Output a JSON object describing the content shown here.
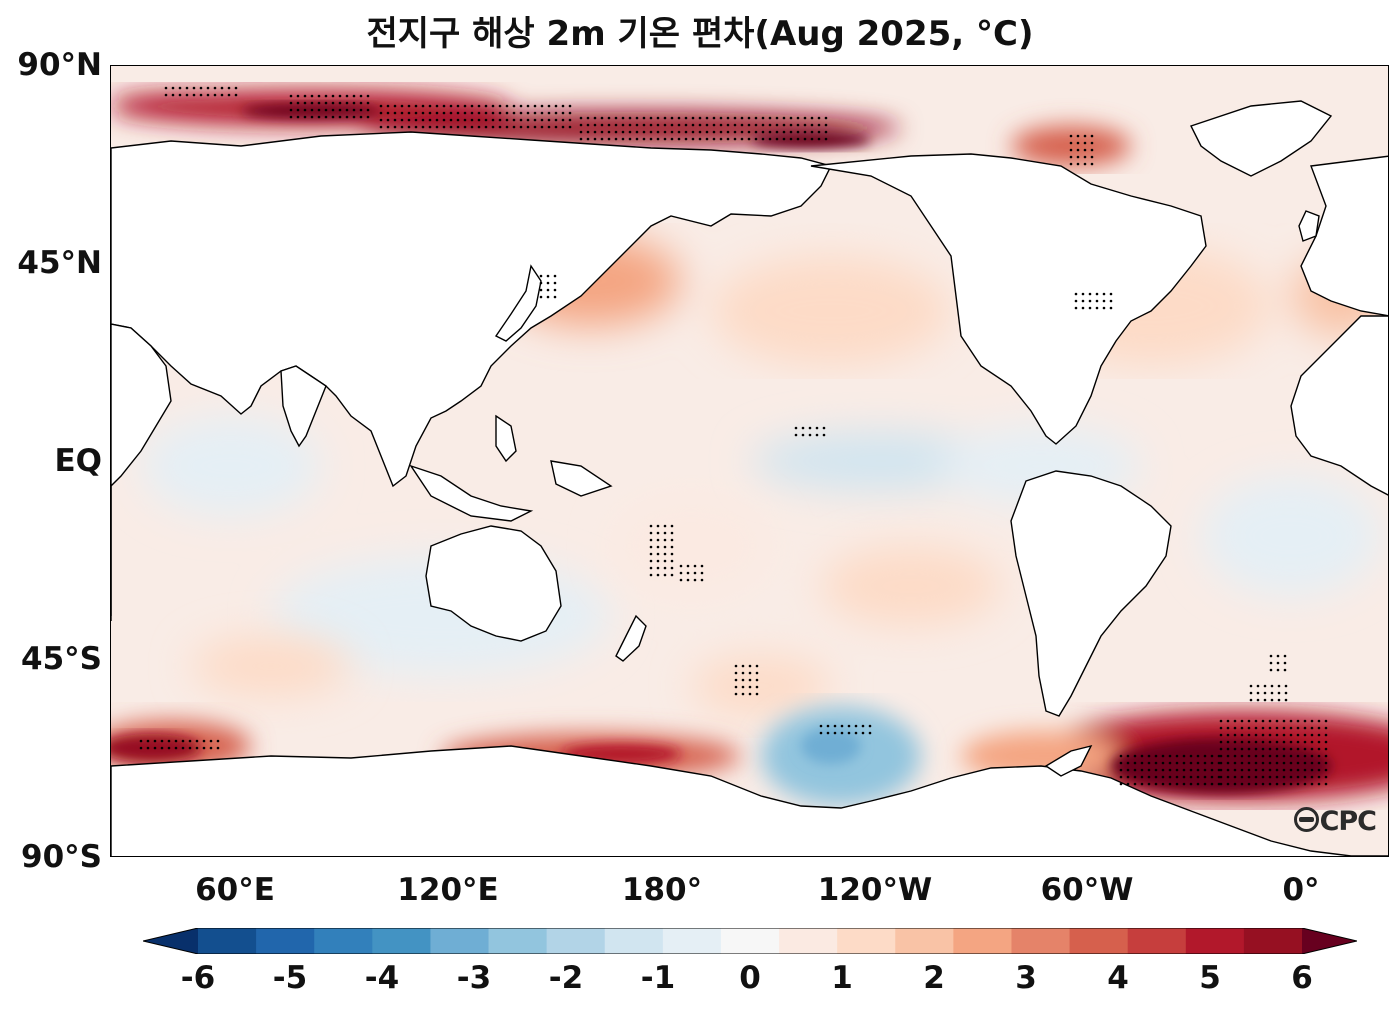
{
  "title": "전지구 해상 2m 기온 편차(Aug 2025, °C)",
  "logo_text": "CPC",
  "lat_ticks": [
    "90°N",
    "45°N",
    "EQ",
    "45°S",
    "90°S"
  ],
  "lon_ticks": [
    "60°E",
    "120°E",
    "180°",
    "120°W",
    "60°W",
    "0°"
  ],
  "colorbar": {
    "min": -6,
    "max": 6,
    "tick_labels": [
      "-6",
      "-5",
      "-4",
      "-3",
      "-2",
      "-1",
      "0",
      "1",
      "2",
      "3",
      "4",
      "5",
      "6"
    ],
    "colors": [
      "#08306b",
      "#134f8f",
      "#2166ac",
      "#3280bb",
      "#4393c3",
      "#6faed4",
      "#92c5de",
      "#b2d4e7",
      "#d1e5f0",
      "#e5eff5",
      "#f7f7f7",
      "#fbeae2",
      "#fddbc7",
      "#f9c3a6",
      "#f4a582",
      "#e58369",
      "#d6604d",
      "#c63e3d",
      "#b2182b",
      "#961022",
      "#67001f"
    ]
  },
  "map_extent": {
    "lon_min": 30,
    "lon_max": 390,
    "lat_min": -90,
    "lat_max": 90
  }
}
